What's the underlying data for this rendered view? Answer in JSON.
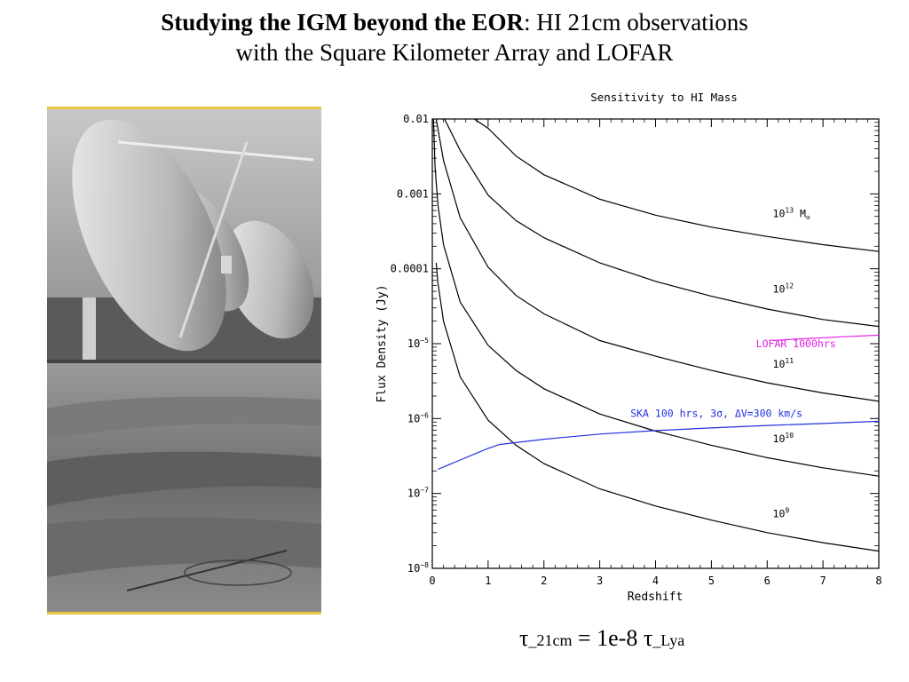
{
  "slide": {
    "title_bold": "Studying the IGM beyond the EOR",
    "title_rest": ": HI 21cm observations",
    "title_line2": "with the Square Kilometer Array and LOFAR"
  },
  "photo": {
    "description": "grayscale photograph of radio dish antennas"
  },
  "formula": {
    "tau": "τ",
    "sub1": "_21cm",
    "middle": " = 1e-8 ",
    "tau2": "τ",
    "sub2": "_Lya"
  },
  "colors": {
    "lofar": "#e020e0",
    "ska": "#2030e0",
    "mass_curves": "#000000",
    "photo_frame": "#e8c840"
  },
  "chart_data": {
    "type": "line",
    "title": "Sensitivity to HI Mass",
    "xlabel": "Redshift",
    "ylabel": "Flux Density (Jy)",
    "xlim": [
      0,
      8
    ],
    "ylim": [
      1e-08,
      0.01
    ],
    "log_y": true,
    "x_ticks": [
      "0",
      "1",
      "2",
      "3",
      "4",
      "5",
      "6",
      "7",
      "8"
    ],
    "y_ticks": [
      {
        "value": 0.01,
        "mant": "0.01",
        "exp": ""
      },
      {
        "value": 0.001,
        "mant": "0.001",
        "exp": ""
      },
      {
        "value": 0.0001,
        "mant": "0.0001",
        "exp": ""
      },
      {
        "value": 1e-05,
        "mant": "10",
        "exp": "−5"
      },
      {
        "value": 1e-06,
        "mant": "10",
        "exp": "−6"
      },
      {
        "value": 1e-07,
        "mant": "10",
        "exp": "−7"
      },
      {
        "value": 1e-08,
        "mant": "10",
        "exp": "−8"
      }
    ],
    "grid": false,
    "series": [
      {
        "name": "10^13 M_sun",
        "label_base": "10",
        "label_exp": "13",
        "label_suffix": " M",
        "label_at": [
          6.1,
          0.00049
        ],
        "x": [
          0.75,
          1.0,
          1.5,
          2.0,
          3.0,
          4.0,
          5.0,
          6.0,
          7.0,
          8.0
        ],
        "y": [
          0.01,
          0.0075,
          0.0032,
          0.0018,
          0.00085,
          0.00052,
          0.00036,
          0.00027,
          0.00021,
          0.00017
        ]
      },
      {
        "name": "10^12",
        "label_base": "10",
        "label_exp": "12",
        "label_suffix": "",
        "label_at": [
          6.1,
          4.8e-05
        ],
        "x": [
          0.22,
          0.5,
          1.0,
          1.5,
          2.0,
          3.0,
          4.0,
          5.0,
          6.0,
          7.0,
          8.0
        ],
        "y": [
          0.01,
          0.0038,
          0.00096,
          0.00044,
          0.00026,
          0.00012,
          6.8e-05,
          4.3e-05,
          2.9e-05,
          2.1e-05,
          1.7e-05
        ]
      },
      {
        "name": "10^11",
        "label_base": "10",
        "label_exp": "11",
        "label_suffix": "",
        "label_at": [
          6.1,
          4.8e-06
        ],
        "x": [
          0.07,
          0.2,
          0.5,
          1.0,
          1.5,
          2.0,
          3.0,
          4.0,
          5.0,
          6.0,
          7.0,
          8.0
        ],
        "y": [
          0.01,
          0.0028,
          0.00048,
          0.000105,
          4.4e-05,
          2.5e-05,
          1.1e-05,
          6.8e-06,
          4.4e-06,
          3e-06,
          2.2e-06,
          1.7e-06
        ]
      },
      {
        "name": "10^10",
        "label_base": "10",
        "label_exp": "10",
        "label_suffix": "",
        "label_at": [
          6.1,
          4.8e-07
        ],
        "x": [
          0.02,
          0.05,
          0.1,
          0.2,
          0.5,
          1.0,
          1.5,
          2.0,
          3.0,
          4.0,
          5.0,
          6.0,
          7.0,
          8.0
        ],
        "y": [
          0.01,
          0.0023,
          0.00072,
          0.00021,
          3.6e-05,
          9.5e-06,
          4.4e-06,
          2.5e-06,
          1.15e-06,
          6.8e-07,
          4.4e-07,
          3e-07,
          2.2e-07,
          1.7e-07
        ]
      },
      {
        "name": "10^9",
        "label_base": "10",
        "label_exp": "9",
        "label_suffix": "",
        "label_at": [
          6.1,
          4.8e-08
        ],
        "x": [
          0.07,
          0.1,
          0.2,
          0.5,
          1.0,
          1.5,
          2.0,
          3.0,
          4.0,
          5.0,
          6.0,
          7.0,
          8.0
        ],
        "y": [
          0.00012,
          6.5e-05,
          2e-05,
          3.6e-06,
          9.5e-07,
          4.4e-07,
          2.5e-07,
          1.15e-07,
          6.8e-08,
          4.4e-08,
          3e-08,
          2.2e-08,
          1.7e-08
        ]
      },
      {
        "name": "LOFAR 1000hrs",
        "label_at": [
          5.8,
          9e-06
        ],
        "x": [
          6.1,
          6.5,
          7.0,
          7.5,
          8.0
        ],
        "y": [
          1.1e-05,
          1.15e-05,
          1.2e-05,
          1.25e-05,
          1.3e-05
        ]
      },
      {
        "name": "SKA 100 hrs, 3σ, ΔV=300 km/s",
        "label_at": [
          3.55,
          1.05e-06
        ],
        "x": [
          0.1,
          0.5,
          1.0,
          1.2,
          2.0,
          3.0,
          4.0,
          5.0,
          6.0,
          7.0,
          8.0
        ],
        "y": [
          2.1e-07,
          2.8e-07,
          4e-07,
          4.5e-07,
          5.3e-07,
          6.2e-07,
          6.9e-07,
          7.5e-07,
          8.1e-07,
          8.6e-07,
          9.2e-07
        ]
      }
    ]
  }
}
